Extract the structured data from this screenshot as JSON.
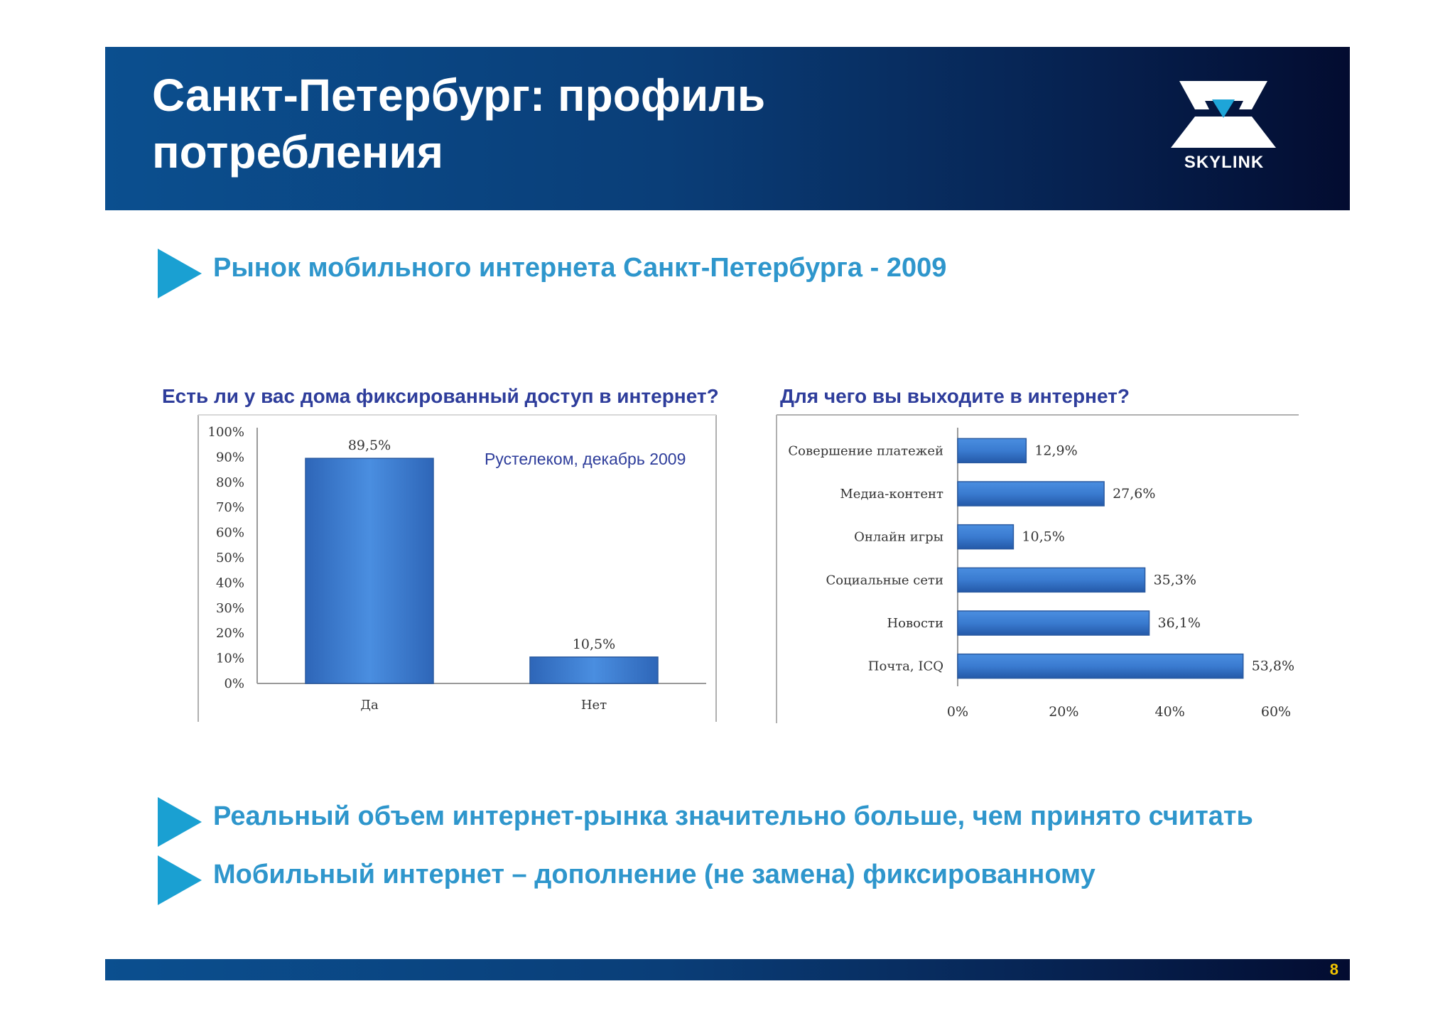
{
  "header": {
    "title_line1": "Санкт-Петербург: профиль",
    "title_line2": "потребления",
    "logo_text": "SKYLINK"
  },
  "bullets": [
    "Рынок мобильного интернета Санкт-Петербурга - 2009",
    "Реальный объем интернет-рынка значительно больше, чем принято считать",
    "Мобильный интернет – дополнение (не замена) фиксированному"
  ],
  "colors": {
    "header_start": "#0b4f8f",
    "header_end": "#030c30",
    "accent": "#2e96cc",
    "heading": "#2e3d9b",
    "bar": "#3f7fcf",
    "page_number": "#f2c400"
  },
  "footer": {
    "page_number": "8"
  },
  "chart_data": [
    {
      "type": "bar",
      "title": "Есть ли у вас дома фиксированный доступ в интернет?",
      "annotation": "Рустелеком, декабрь 2009",
      "categories": [
        "Да",
        "Нет"
      ],
      "values": [
        89.5,
        10.5
      ],
      "value_labels": [
        "89,5%",
        "10,5%"
      ],
      "ylim": [
        0,
        100
      ],
      "y_ticks": [
        "0%",
        "10%",
        "20%",
        "30%",
        "40%",
        "50%",
        "60%",
        "70%",
        "80%",
        "90%",
        "100%"
      ],
      "grid": false,
      "legend": "none"
    },
    {
      "type": "bar",
      "orientation": "horizontal",
      "title": "Для чего вы выходите в интернет?",
      "categories": [
        "Совершение платежей",
        "Медиа-контент",
        "Онлайн игры",
        "Социальные сети",
        "Новости",
        "Почта, ICQ"
      ],
      "values": [
        12.9,
        27.6,
        10.5,
        35.3,
        36.1,
        53.8
      ],
      "value_labels": [
        "12,9%",
        "27,6%",
        "10,5%",
        "35,3%",
        "36,1%",
        "53,8%"
      ],
      "xlim": [
        0,
        60
      ],
      "x_ticks": [
        "0%",
        "20%",
        "40%",
        "60%"
      ],
      "grid": false,
      "legend": "none"
    }
  ]
}
